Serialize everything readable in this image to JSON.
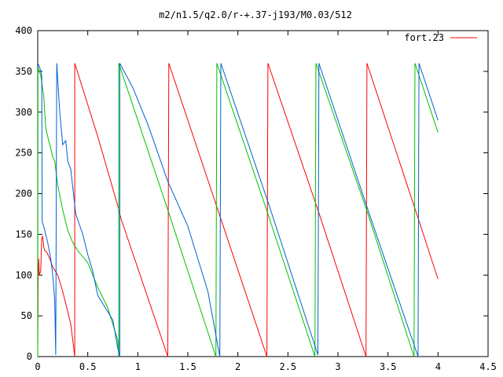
{
  "chart_data": {
    "type": "line",
    "title": "m2/n1.5/q2.0/r-+.37-j193/M0.03/512",
    "xlabel": "",
    "ylabel": "",
    "xlim": [
      0,
      4.5
    ],
    "ylim": [
      0,
      400
    ],
    "x_ticks": [
      "0",
      "0.5",
      "1",
      "1.5",
      "2",
      "2.5",
      "3",
      "3.5",
      "4",
      "4.5"
    ],
    "y_ticks": [
      "0",
      "50",
      "100",
      "150",
      "200",
      "250",
      "300",
      "350",
      "400"
    ],
    "grid": false,
    "legend_position": "top-right",
    "series": [
      {
        "name": "fort.23",
        "color": "#ff0000",
        "points": [
          [
            0.0,
            5
          ],
          [
            0.005,
            100
          ],
          [
            0.01,
            120
          ],
          [
            0.015,
            100
          ],
          [
            0.03,
            105
          ],
          [
            0.04,
            145
          ],
          [
            0.05,
            148
          ],
          [
            0.06,
            135
          ],
          [
            0.07,
            130
          ],
          [
            0.09,
            128
          ],
          [
            0.12,
            120
          ],
          [
            0.15,
            110
          ],
          [
            0.2,
            100
          ],
          [
            0.25,
            80
          ],
          [
            0.3,
            55
          ],
          [
            0.33,
            40
          ],
          [
            0.35,
            20
          ],
          [
            0.37,
            0
          ],
          [
            0.37,
            360
          ],
          [
            0.6,
            270
          ],
          [
            0.8,
            185
          ],
          [
            0.83,
            170
          ],
          [
            1.3,
            0
          ],
          [
            1.31,
            360
          ],
          [
            1.8,
            180
          ],
          [
            2.29,
            0
          ],
          [
            2.3,
            360
          ],
          [
            2.8,
            180
          ],
          [
            3.28,
            0
          ],
          [
            3.29,
            360
          ],
          [
            3.8,
            170
          ],
          [
            4.0,
            95
          ]
        ]
      },
      {
        "name": "",
        "color": "#00c000",
        "points": [
          [
            0.0,
            0
          ],
          [
            0.002,
            355
          ],
          [
            0.03,
            345
          ],
          [
            0.06,
            320
          ],
          [
            0.08,
            280
          ],
          [
            0.12,
            260
          ],
          [
            0.15,
            245
          ],
          [
            0.17,
            240
          ],
          [
            0.2,
            210
          ],
          [
            0.25,
            180
          ],
          [
            0.3,
            155
          ],
          [
            0.35,
            140
          ],
          [
            0.4,
            130
          ],
          [
            0.5,
            115
          ],
          [
            0.6,
            85
          ],
          [
            0.7,
            60
          ],
          [
            0.8,
            20
          ],
          [
            0.81,
            0
          ],
          [
            0.81,
            360
          ],
          [
            1.3,
            180
          ],
          [
            1.78,
            0
          ],
          [
            1.79,
            360
          ],
          [
            2.3,
            175
          ],
          [
            2.77,
            0
          ],
          [
            2.78,
            360
          ],
          [
            3.3,
            175
          ],
          [
            3.76,
            0
          ],
          [
            3.77,
            360
          ],
          [
            4.0,
            275
          ]
        ]
      },
      {
        "name": "",
        "color": "#0060d0",
        "points": [
          [
            0.0,
            360
          ],
          [
            0.02,
            355
          ],
          [
            0.04,
            345
          ],
          [
            0.045,
            165
          ],
          [
            0.06,
            160
          ],
          [
            0.1,
            140
          ],
          [
            0.13,
            120
          ],
          [
            0.15,
            100
          ],
          [
            0.17,
            70
          ],
          [
            0.18,
            2
          ],
          [
            0.19,
            360
          ],
          [
            0.22,
            300
          ],
          [
            0.25,
            260
          ],
          [
            0.28,
            265
          ],
          [
            0.3,
            240
          ],
          [
            0.33,
            230
          ],
          [
            0.38,
            175
          ],
          [
            0.45,
            150
          ],
          [
            0.5,
            125
          ],
          [
            0.55,
            105
          ],
          [
            0.6,
            75
          ],
          [
            0.7,
            55
          ],
          [
            0.75,
            45
          ],
          [
            0.8,
            10
          ],
          [
            0.82,
            0
          ],
          [
            0.82,
            360
          ],
          [
            0.95,
            330
          ],
          [
            1.0,
            315
          ],
          [
            1.1,
            285
          ],
          [
            1.2,
            250
          ],
          [
            1.3,
            215
          ],
          [
            1.5,
            160
          ],
          [
            1.7,
            80
          ],
          [
            1.82,
            0
          ],
          [
            1.83,
            360
          ],
          [
            2.3,
            190
          ],
          [
            2.8,
            2
          ],
          [
            2.81,
            360
          ],
          [
            3.3,
            180
          ],
          [
            3.8,
            0
          ],
          [
            3.81,
            360
          ],
          [
            4.0,
            290
          ]
        ]
      }
    ]
  }
}
